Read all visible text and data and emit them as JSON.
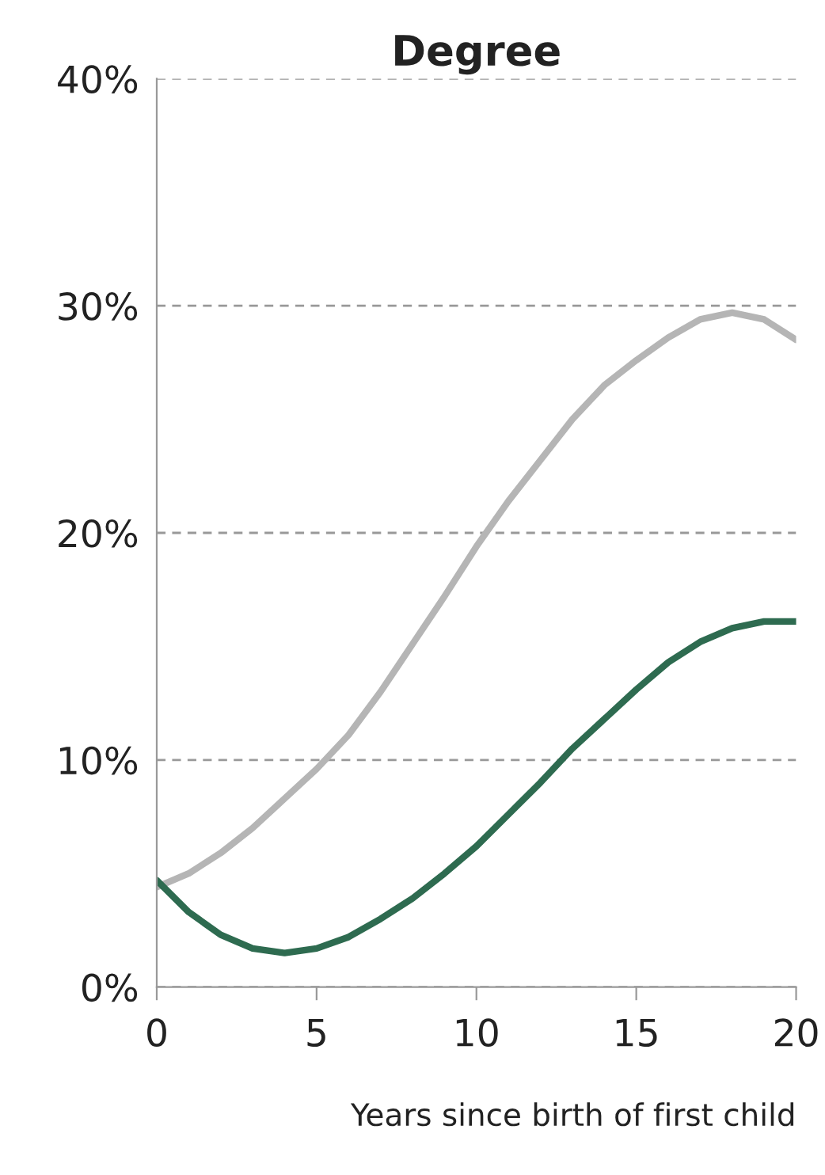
{
  "chart_data": {
    "type": "line",
    "title": "Degree",
    "xlabel": "Years since birth of first child",
    "x": [
      0,
      1,
      2,
      3,
      4,
      5,
      6,
      7,
      8,
      9,
      10,
      11,
      12,
      13,
      14,
      15,
      16,
      17,
      18,
      19,
      20
    ],
    "series": [
      {
        "color": "#b5b5b5",
        "values": [
          4.4,
          5.0,
          5.9,
          7.0,
          8.3,
          9.6,
          11.1,
          13.0,
          15.1,
          17.2,
          19.4,
          21.4,
          23.2,
          25.0,
          26.5,
          27.6,
          28.6,
          29.4,
          29.7,
          29.4,
          28.5
        ]
      },
      {
        "color": "#2e6b50",
        "values": [
          4.7,
          3.3,
          2.3,
          1.7,
          1.5,
          1.7,
          2.2,
          3.0,
          3.9,
          5.0,
          6.2,
          7.6,
          9.0,
          10.5,
          11.8,
          13.1,
          14.3,
          15.2,
          15.8,
          16.1,
          16.1
        ]
      }
    ],
    "xlim": [
      0,
      20
    ],
    "xticks": [
      0,
      5,
      10,
      15,
      20
    ],
    "ylim": [
      0,
      40
    ],
    "yticks": [
      {
        "value": 0,
        "label": "0%"
      },
      {
        "value": 10,
        "label": "10%"
      },
      {
        "value": 20,
        "label": "20%"
      },
      {
        "value": 30,
        "label": "30%"
      },
      {
        "value": 40,
        "label": "40%"
      }
    ],
    "grid": "y",
    "marker": "none",
    "line_style": "solid",
    "legend": false
  }
}
